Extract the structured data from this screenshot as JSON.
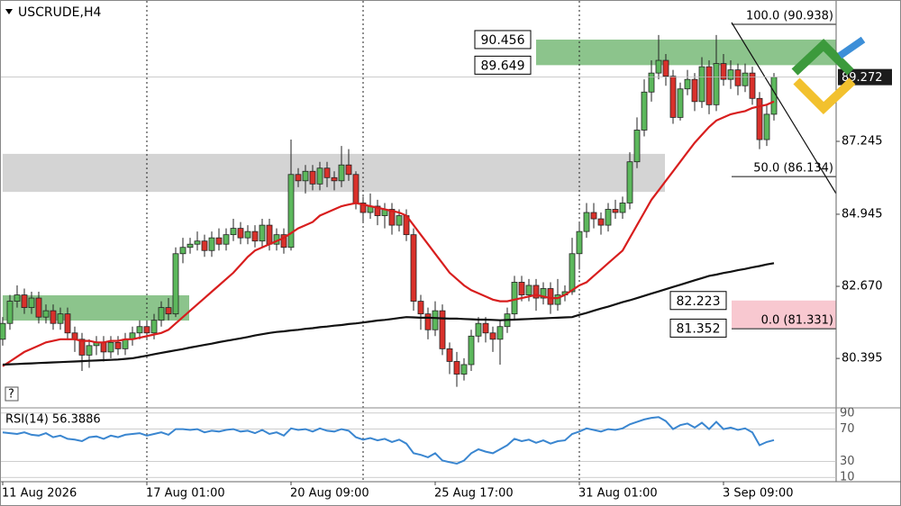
{
  "chart_data": {
    "type": "candlestick",
    "title": "USCRUDE,H4",
    "categories": [
      "11 Aug 2026",
      null,
      null,
      null,
      null,
      null,
      null,
      null,
      null,
      null,
      null,
      null,
      null,
      null,
      null,
      null,
      null,
      null,
      null,
      null,
      "17 Aug 01:00",
      null,
      null,
      null,
      null,
      null,
      null,
      null,
      null,
      null,
      null,
      null,
      null,
      null,
      null,
      null,
      null,
      null,
      null,
      null,
      "20 Aug 09:00",
      null,
      null,
      null,
      null,
      null,
      null,
      null,
      null,
      null,
      null,
      null,
      null,
      null,
      null,
      null,
      null,
      null,
      null,
      null,
      "25 Aug 17:00",
      null,
      null,
      null,
      null,
      null,
      null,
      null,
      null,
      null,
      null,
      null,
      null,
      null,
      null,
      null,
      null,
      null,
      null,
      null,
      "31 Aug 01:00",
      null,
      null,
      null,
      null,
      null,
      null,
      null,
      null,
      null,
      null,
      null,
      null,
      null,
      null,
      null,
      null,
      null,
      null,
      null,
      "3 Sep 09:00",
      null,
      null,
      null,
      null,
      null,
      null,
      null
    ],
    "open": [
      81.0,
      81.5,
      82.2,
      82.4,
      82.0,
      82.3,
      81.7,
      81.9,
      81.5,
      81.8,
      81.2,
      81.0,
      80.5,
      80.8,
      80.9,
      80.6,
      80.9,
      80.7,
      81.0,
      81.2,
      81.4,
      81.2,
      81.6,
      82.0,
      81.8,
      83.7,
      83.9,
      84.0,
      84.1,
      83.8,
      84.2,
      84.0,
      84.3,
      84.5,
      84.2,
      84.4,
      84.1,
      84.6,
      84.0,
      84.3,
      83.9,
      86.2,
      86.0,
      86.3,
      85.9,
      86.4,
      86.1,
      86.0,
      86.5,
      86.2,
      85.3,
      85.0,
      85.2,
      84.9,
      85.1,
      84.6,
      84.9,
      84.3,
      82.2,
      81.8,
      81.3,
      81.9,
      80.7,
      80.3,
      79.9,
      80.2,
      81.1,
      81.5,
      81.2,
      81.0,
      81.4,
      81.8,
      82.8,
      82.4,
      82.7,
      82.3,
      82.6,
      82.1,
      82.4,
      82.5,
      83.7,
      84.4,
      85.0,
      84.8,
      84.6,
      85.1,
      85.0,
      85.3,
      86.6,
      87.6,
      88.8,
      89.4,
      89.8,
      89.3,
      88.0,
      88.9,
      89.2,
      88.5,
      89.6,
      88.4,
      89.7,
      89.2,
      89.5,
      89.0,
      89.4,
      88.6,
      87.3,
      88.1
    ],
    "high": [
      81.7,
      82.4,
      82.7,
      82.6,
      82.5,
      82.5,
      82.1,
      82.1,
      82.0,
      82.0,
      81.4,
      81.2,
      81.0,
      81.1,
      81.1,
      81.1,
      81.1,
      81.2,
      81.4,
      81.6,
      81.6,
      81.8,
      82.2,
      82.3,
      83.9,
      84.2,
      84.2,
      84.4,
      84.3,
      84.4,
      84.5,
      84.5,
      84.8,
      84.7,
      84.6,
      84.6,
      84.8,
      84.8,
      84.5,
      84.5,
      87.3,
      86.4,
      86.5,
      86.5,
      86.6,
      86.6,
      86.3,
      87.1,
      87.0,
      86.3,
      85.5,
      85.6,
      85.4,
      85.3,
      85.3,
      85.1,
      85.1,
      84.5,
      82.4,
      82.0,
      82.2,
      82.1,
      80.9,
      80.6,
      80.4,
      81.3,
      81.7,
      81.7,
      81.4,
      81.6,
      82.0,
      83.0,
      83.0,
      82.9,
      82.9,
      82.8,
      82.8,
      82.9,
      82.7,
      84.2,
      84.7,
      85.3,
      85.3,
      85.0,
      85.3,
      85.4,
      85.5,
      86.9,
      88.0,
      89.2,
      89.8,
      90.6,
      90.0,
      89.5,
      89.1,
      89.5,
      89.4,
      89.9,
      89.8,
      90.6,
      90.0,
      89.8,
      89.7,
      89.7,
      89.6,
      88.8,
      88.4,
      89.4
    ],
    "low": [
      80.8,
      81.3,
      82.0,
      81.8,
      81.8,
      81.5,
      81.5,
      81.3,
      81.3,
      81.0,
      80.6,
      80.0,
      80.1,
      80.5,
      80.3,
      80.4,
      80.5,
      80.5,
      80.8,
      81.0,
      81.0,
      81.0,
      81.4,
      81.6,
      81.7,
      83.4,
      83.7,
      83.8,
      83.6,
      83.6,
      83.8,
      83.8,
      84.1,
      84.0,
      84.0,
      83.9,
      83.9,
      83.8,
      83.8,
      83.7,
      83.8,
      85.8,
      85.6,
      85.7,
      85.7,
      85.8,
      85.7,
      85.8,
      86.0,
      85.1,
      84.7,
      84.8,
      84.6,
      84.5,
      84.3,
      84.4,
      84.1,
      81.9,
      81.3,
      81.0,
      81.1,
      80.5,
      79.9,
      79.5,
      79.7,
      80.0,
      80.9,
      80.9,
      80.6,
      80.2,
      81.2,
      81.6,
      82.2,
      82.2,
      81.9,
      82.1,
      81.8,
      81.9,
      82.2,
      82.4,
      83.2,
      84.2,
      84.5,
      84.3,
      84.4,
      84.8,
      84.8,
      85.1,
      86.4,
      87.4,
      88.5,
      89.2,
      89.0,
      87.8,
      87.9,
      88.7,
      88.2,
      88.3,
      88.1,
      88.2,
      89.0,
      88.9,
      88.7,
      88.8,
      88.4,
      87.0,
      87.1,
      87.9
    ],
    "close": [
      81.5,
      82.2,
      82.4,
      82.0,
      82.3,
      81.7,
      81.9,
      81.5,
      81.8,
      81.2,
      81.0,
      80.5,
      80.8,
      80.9,
      80.6,
      80.9,
      80.7,
      81.0,
      81.2,
      81.4,
      81.2,
      81.6,
      82.0,
      81.8,
      83.7,
      83.9,
      84.0,
      84.1,
      83.8,
      84.2,
      84.0,
      84.3,
      84.5,
      84.2,
      84.4,
      84.1,
      84.6,
      84.0,
      84.3,
      83.9,
      86.2,
      86.0,
      86.3,
      85.9,
      86.4,
      86.1,
      86.0,
      86.5,
      86.2,
      85.3,
      85.0,
      85.2,
      84.9,
      85.1,
      84.6,
      84.9,
      84.3,
      82.2,
      81.8,
      81.3,
      81.9,
      80.7,
      80.3,
      79.9,
      80.2,
      81.1,
      81.5,
      81.2,
      81.0,
      81.4,
      81.8,
      82.8,
      82.4,
      82.7,
      82.3,
      82.6,
      82.1,
      82.4,
      82.5,
      83.7,
      84.4,
      85.0,
      84.8,
      84.6,
      85.1,
      85.0,
      85.3,
      86.6,
      87.6,
      88.8,
      89.4,
      89.8,
      89.3,
      88.0,
      88.9,
      89.2,
      88.5,
      89.6,
      88.4,
      89.7,
      89.2,
      89.5,
      89.0,
      89.4,
      88.6,
      87.3,
      88.1,
      89.27
    ],
    "up_color": "#5cb85c",
    "down_color": "#d9312b",
    "overlays": [
      {
        "color": "#d81e1e",
        "values": [
          80.15,
          80.3,
          80.45,
          80.6,
          80.7,
          80.8,
          80.9,
          80.95,
          81.0,
          81.0,
          81.0,
          80.95,
          80.95,
          80.9,
          80.9,
          80.95,
          80.95,
          81.0,
          81.0,
          81.05,
          81.1,
          81.15,
          81.2,
          81.3,
          81.5,
          81.7,
          81.9,
          82.1,
          82.3,
          82.5,
          82.7,
          82.9,
          83.1,
          83.35,
          83.6,
          83.8,
          83.9,
          84.0,
          84.1,
          84.2,
          84.35,
          84.5,
          84.6,
          84.7,
          84.9,
          85.0,
          85.1,
          85.2,
          85.25,
          85.3,
          85.25,
          85.2,
          85.15,
          85.1,
          85.05,
          85.0,
          84.9,
          84.6,
          84.3,
          84.0,
          83.7,
          83.4,
          83.1,
          82.9,
          82.7,
          82.55,
          82.45,
          82.35,
          82.25,
          82.2,
          82.2,
          82.25,
          82.3,
          82.35,
          82.4,
          82.35,
          82.3,
          82.3,
          82.4,
          82.55,
          82.7,
          82.8,
          83.0,
          83.2,
          83.4,
          83.6,
          83.8,
          84.2,
          84.6,
          85.0,
          85.4,
          85.7,
          86.0,
          86.3,
          86.6,
          86.9,
          87.2,
          87.45,
          87.7,
          87.9,
          88.0,
          88.1,
          88.15,
          88.2,
          88.3,
          88.35,
          88.4,
          88.5
        ]
      },
      {
        "color": "#111111",
        "values": [
          80.2,
          80.21,
          80.22,
          80.23,
          80.24,
          80.25,
          80.26,
          80.27,
          80.28,
          80.29,
          80.3,
          80.31,
          80.32,
          80.33,
          80.34,
          80.35,
          80.36,
          80.38,
          80.4,
          80.44,
          80.48,
          80.53,
          80.57,
          80.61,
          80.65,
          80.69,
          80.74,
          80.78,
          80.82,
          80.86,
          80.91,
          80.95,
          80.99,
          81.03,
          81.07,
          81.12,
          81.16,
          81.2,
          81.23,
          81.25,
          81.28,
          81.3,
          81.33,
          81.35,
          81.38,
          81.4,
          81.43,
          81.45,
          81.48,
          81.5,
          81.53,
          81.56,
          81.59,
          81.61,
          81.64,
          81.67,
          81.7,
          81.69,
          81.68,
          81.68,
          81.67,
          81.66,
          81.65,
          81.65,
          81.64,
          81.63,
          81.62,
          81.62,
          81.61,
          81.6,
          81.61,
          81.62,
          81.63,
          81.64,
          81.65,
          81.66,
          81.67,
          81.68,
          81.69,
          81.7,
          81.77,
          81.83,
          81.9,
          81.97,
          82.03,
          82.1,
          82.17,
          82.23,
          82.3,
          82.37,
          82.44,
          82.51,
          82.58,
          82.65,
          82.72,
          82.79,
          82.86,
          82.93,
          83.0,
          83.04,
          83.09,
          83.13,
          83.18,
          83.22,
          83.27,
          83.31,
          83.36,
          83.4
        ]
      }
    ],
    "zones": [
      {
        "from": 85.65,
        "to": 86.85,
        "color": "#d4d4d4",
        "show_labels": false
      },
      {
        "from": 81.59,
        "to": 82.387,
        "color": "#8cc48c",
        "show_labels": false
      },
      {
        "from": 89.649,
        "to": 90.456,
        "color": "#8cc48c",
        "show_labels": true
      },
      {
        "from": 81.352,
        "to": 82.223,
        "color": "#f8c8d0",
        "show_labels": true
      }
    ],
    "fibonacci": [
      {
        "value": 90.938,
        "label": "100.0 (90.938)"
      },
      {
        "value": 86.134,
        "label": "50.0 (86.134)"
      },
      {
        "value": 81.331,
        "label": "0.0 (81.331)"
      }
    ],
    "current_price": 89.272,
    "ylim": [
      78.864,
      91.705
    ],
    "yticks": [
      87.245,
      84.945,
      {
        "value": 82.67,
        "label": "82.670"
      },
      80.395
    ],
    "rsi": {
      "title": "RSI(14) 56.3886",
      "color": "#3a86d0",
      "values": [
        66,
        65,
        64,
        66,
        63,
        62,
        65,
        60,
        62,
        58,
        57,
        55,
        60,
        61,
        58,
        62,
        60,
        63,
        64,
        65,
        62,
        64,
        66,
        63,
        70,
        70,
        69,
        70,
        66,
        68,
        67,
        69,
        70,
        67,
        68,
        65,
        69,
        64,
        66,
        62,
        71,
        69,
        70,
        67,
        71,
        68,
        67,
        70,
        68,
        60,
        57,
        59,
        56,
        58,
        54,
        57,
        52,
        40,
        38,
        35,
        40,
        31,
        29,
        27,
        31,
        40,
        45,
        42,
        40,
        45,
        50,
        58,
        55,
        57,
        53,
        56,
        52,
        55,
        56,
        64,
        67,
        71,
        69,
        67,
        70,
        69,
        71,
        76,
        79,
        82,
        84,
        85,
        80,
        70,
        75,
        77,
        72,
        78,
        70,
        79,
        70,
        72,
        69,
        71,
        66,
        50,
        54,
        56.3886
      ],
      "ylim": [
        8,
        92
      ],
      "yticks": [
        90,
        70,
        30,
        10
      ]
    }
  }
}
